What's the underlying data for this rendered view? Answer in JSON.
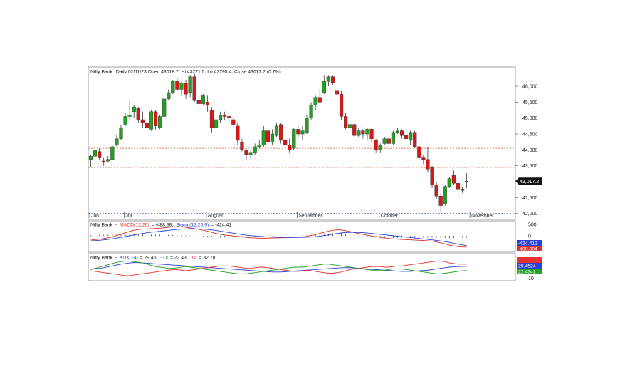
{
  "chart_data": [
    {
      "panel": "price",
      "type": "candlestick",
      "header": {
        "symbol": "Nifty Bank",
        "text": "Daily 02/11/23 Open 43018.7, Hi 43271.5, Lo 42795.4, Close 43017.2 (0.7%)"
      },
      "y_ticks": [
        "46,000",
        "45,500",
        "45,000",
        "44,500",
        "44,000",
        "43,500",
        "42,500",
        "42,000"
      ],
      "ylim": [
        41860,
        46560
      ],
      "last_value_label": "43,017.2",
      "last_value": 43017.2,
      "month_labels": [
        {
          "label": "Jun",
          "index": 0
        },
        {
          "label": "Jul",
          "index": 8
        },
        {
          "label": "August",
          "index": 27
        },
        {
          "label": "September",
          "index": 48
        },
        {
          "label": "October",
          "index": 67
        },
        {
          "label": "November",
          "index": 88
        }
      ],
      "reference_lines": [
        {
          "value": 44050,
          "style": "dotted",
          "color": "#e0532a"
        },
        {
          "value": 43450,
          "style": "dotted",
          "color": "#e0532a"
        },
        {
          "value": 42830,
          "style": "dotted",
          "color": "#3050c0"
        },
        {
          "value": 42000,
          "style": "dotted",
          "color": "#3050c0"
        }
      ],
      "candles": [
        [
          43700,
          43850,
          43450,
          43800
        ],
        [
          43800,
          44050,
          43750,
          43980
        ],
        [
          43950,
          44050,
          43700,
          43750
        ],
        [
          43650,
          43750,
          43500,
          43620
        ],
        [
          43650,
          43800,
          43600,
          43700
        ],
        [
          43700,
          44150,
          43680,
          44100
        ],
        [
          44150,
          44480,
          44100,
          44350
        ],
        [
          44350,
          44780,
          44300,
          44700
        ],
        [
          44800,
          45150,
          44750,
          45050
        ],
        [
          45050,
          45550,
          44950,
          45100
        ],
        [
          45200,
          45400,
          45000,
          45350
        ],
        [
          45300,
          45350,
          44850,
          44950
        ],
        [
          44950,
          45200,
          44700,
          44850
        ],
        [
          44850,
          45050,
          44600,
          44700
        ],
        [
          44650,
          45250,
          44600,
          45200
        ],
        [
          45200,
          45250,
          44650,
          44750
        ],
        [
          44700,
          45100,
          44650,
          45050
        ],
        [
          45050,
          45650,
          45000,
          45600
        ],
        [
          45600,
          45900,
          45550,
          45800
        ],
        [
          45800,
          46200,
          45750,
          46150
        ],
        [
          46150,
          46250,
          45850,
          45900
        ],
        [
          45900,
          46150,
          45700,
          46100
        ],
        [
          46100,
          46200,
          45600,
          45750
        ],
        [
          45800,
          46350,
          45650,
          46300
        ],
        [
          46300,
          46400,
          45500,
          45550
        ],
        [
          45550,
          45700,
          45300,
          45450
        ],
        [
          45450,
          45750,
          45400,
          45700
        ],
        [
          45500,
          45700,
          45200,
          45400
        ],
        [
          45250,
          45350,
          44550,
          44700
        ],
        [
          44700,
          45000,
          44600,
          44950
        ],
        [
          44950,
          45200,
          44850,
          45100
        ],
        [
          45100,
          45200,
          44950,
          45050
        ],
        [
          45050,
          45150,
          44800,
          45000
        ],
        [
          44950,
          45050,
          44700,
          44800
        ],
        [
          44750,
          44850,
          44150,
          44300
        ],
        [
          44250,
          44350,
          43950,
          44000
        ],
        [
          44000,
          44050,
          43700,
          43850
        ],
        [
          43850,
          44000,
          43700,
          43900
        ],
        [
          43900,
          44200,
          43850,
          44100
        ],
        [
          44100,
          44300,
          44050,
          44150
        ],
        [
          44150,
          44750,
          44100,
          44600
        ],
        [
          44600,
          44700,
          44100,
          44250
        ],
        [
          44250,
          44650,
          44150,
          44500
        ],
        [
          44450,
          44850,
          44400,
          44750
        ],
        [
          44800,
          44850,
          44200,
          44300
        ],
        [
          44300,
          44450,
          44050,
          44150
        ],
        [
          44150,
          44350,
          43900,
          44000
        ],
        [
          44050,
          44700,
          44000,
          44650
        ],
        [
          44650,
          44750,
          44400,
          44500
        ],
        [
          44500,
          44750,
          44300,
          44600
        ],
        [
          44550,
          45100,
          44500,
          45000
        ],
        [
          45000,
          45500,
          44950,
          45400
        ],
        [
          45400,
          45700,
          45250,
          45650
        ],
        [
          45650,
          45900,
          45450,
          45500
        ],
        [
          45800,
          46350,
          45750,
          46150
        ],
        [
          46150,
          46350,
          46000,
          46300
        ],
        [
          46300,
          46350,
          46050,
          46100
        ],
        [
          45850,
          45950,
          45650,
          45750
        ],
        [
          45750,
          45850,
          44950,
          45050
        ],
        [
          45050,
          45150,
          44650,
          44700
        ],
        [
          44700,
          44900,
          44550,
          44800
        ],
        [
          44800,
          44900,
          44400,
          44450
        ],
        [
          44450,
          44700,
          44400,
          44600
        ],
        [
          44600,
          44650,
          44350,
          44500
        ],
        [
          44500,
          44700,
          44300,
          44650
        ],
        [
          44650,
          44700,
          44250,
          44350
        ],
        [
          44300,
          44350,
          43900,
          44000
        ],
        [
          44000,
          44200,
          43900,
          44150
        ],
        [
          44200,
          44400,
          44150,
          44350
        ],
        [
          44350,
          44450,
          44100,
          44200
        ],
        [
          44200,
          44600,
          44150,
          44550
        ],
        [
          44550,
          44700,
          44500,
          44600
        ],
        [
          44600,
          44650,
          44350,
          44450
        ],
        [
          44450,
          44550,
          44250,
          44350
        ],
        [
          44300,
          44600,
          44150,
          44550
        ],
        [
          44550,
          44600,
          44050,
          44100
        ],
        [
          44100,
          44150,
          43700,
          43750
        ],
        [
          43750,
          43850,
          43550,
          43700
        ],
        [
          43700,
          44100,
          43300,
          43400
        ],
        [
          43450,
          43500,
          42800,
          42900
        ],
        [
          42900,
          43000,
          42450,
          42550
        ],
        [
          42550,
          42650,
          42050,
          42250
        ],
        [
          42300,
          42900,
          42250,
          42850
        ],
        [
          42850,
          43150,
          42800,
          43100
        ],
        [
          43200,
          43350,
          42900,
          42950
        ],
        [
          42950,
          43050,
          42650,
          42750
        ],
        [
          42750,
          42850,
          42650,
          42750
        ],
        [
          43018.7,
          43271.5,
          42795.4,
          43017.2
        ]
      ]
    },
    {
      "panel": "macd",
      "type": "line",
      "header": {
        "symbol": "Nifty Bank",
        "indicator": "MACD(12,26)",
        "indicator_value": "= -488.38,",
        "signal": "Signal(12,26,9)",
        "signal_value": "= -424.41"
      },
      "y_ticks": [
        "500",
        "0"
      ],
      "ylim": [
        -650,
        600
      ],
      "value_labels": [
        {
          "text": "-424.412",
          "color": "#2840d8"
        },
        {
          "text": "-488.384",
          "color": "#d83028"
        }
      ],
      "series": [
        {
          "name": "MACD(12,26)",
          "color": "#d83028",
          "values": [
            -180,
            -160,
            -140,
            -110,
            -80,
            -40,
            20,
            80,
            140,
            200,
            250,
            280,
            300,
            310,
            320,
            330,
            340,
            360,
            380,
            400,
            410,
            400,
            380,
            350,
            320,
            290,
            250,
            210,
            160,
            110,
            70,
            40,
            20,
            0,
            -20,
            -40,
            -60,
            -80,
            -90,
            -100,
            -100,
            -95,
            -90,
            -85,
            -80,
            -75,
            -70,
            -60,
            -50,
            -40,
            -20,
            20,
            60,
            110,
            160,
            210,
            250,
            270,
            260,
            230,
            190,
            150,
            110,
            70,
            30,
            0,
            -30,
            -60,
            -90,
            -110,
            -130,
            -140,
            -150,
            -160,
            -170,
            -180,
            -190,
            -200,
            -210,
            -230,
            -260,
            -300,
            -350,
            -400,
            -440,
            -470,
            -485,
            -488.38
          ]
        },
        {
          "name": "Signal(12,26,9)",
          "color": "#2840d8",
          "values": [
            -220,
            -205,
            -190,
            -170,
            -150,
            -125,
            -95,
            -60,
            -25,
            10,
            45,
            80,
            110,
            140,
            165,
            185,
            205,
            225,
            245,
            265,
            285,
            300,
            310,
            315,
            315,
            310,
            300,
            285,
            265,
            240,
            210,
            180,
            150,
            120,
            90,
            60,
            35,
            15,
            0,
            -15,
            -30,
            -40,
            -50,
            -55,
            -60,
            -63,
            -65,
            -65,
            -64,
            -60,
            -55,
            -45,
            -30,
            -10,
            15,
            45,
            80,
            110,
            135,
            150,
            158,
            160,
            155,
            145,
            130,
            110,
            90,
            70,
            50,
            30,
            10,
            -10,
            -30,
            -50,
            -70,
            -90,
            -110,
            -130,
            -150,
            -170,
            -195,
            -220,
            -250,
            -280,
            -320,
            -360,
            -395,
            -424.41
          ]
        }
      ],
      "histogram": [
        35,
        40,
        45,
        50,
        55,
        60,
        70,
        80,
        90,
        95,
        95,
        90,
        80,
        70,
        60,
        55,
        50,
        48,
        45,
        45,
        40,
        35,
        25,
        15,
        5,
        -10,
        -25,
        -40,
        -55,
        -65,
        -70,
        -70,
        -65,
        -60,
        -55,
        -50,
        -45,
        -40,
        -35,
        -30,
        -25,
        -20,
        -15,
        -10,
        -5,
        0,
        5,
        10,
        15,
        20,
        30,
        45,
        60,
        80,
        95,
        110,
        120,
        125,
        115,
        95,
        70,
        45,
        20,
        -5,
        -25,
        -40,
        -55,
        -70,
        -80,
        -85,
        -85,
        -80,
        -75,
        -70,
        -70,
        -70,
        -70,
        -70,
        -70,
        -70,
        -75,
        -85,
        -95,
        -100,
        -90,
        -80,
        -70,
        -64
      ]
    },
    {
      "panel": "adx",
      "type": "line",
      "header": {
        "symbol": "Nifty Bank",
        "adx": "ADX(14)",
        "adx_value": "= 29.45,",
        "pdi": "+DI",
        "pdi_value": "= 22.43,",
        "mdi": "-DI",
        "mdi_value": "= 32.78"
      },
      "y_ticks": [
        "10"
      ],
      "ylim": [
        8,
        48
      ],
      "value_labels": [
        {
          "text": "29.4524",
          "color": "#2840d8"
        },
        {
          "text": "22.4341",
          "color": "#22a022"
        }
      ],
      "series": [
        {
          "name": "ADX(14)",
          "color": "#2840d8",
          "values": [
            25,
            25.5,
            26,
            27,
            28.5,
            30,
            31.5,
            33,
            34,
            35,
            35.5,
            35.5,
            35,
            34.5,
            34,
            33.5,
            33,
            32.5,
            32,
            31.5,
            31,
            30.5,
            30,
            29.5,
            29,
            28.5,
            28,
            27.5,
            27,
            26.5,
            26,
            25.5,
            25,
            24.5,
            24,
            23.5,
            23,
            22.5,
            22,
            21.5,
            21,
            20.5,
            20,
            20,
            20,
            20.5,
            21,
            21.5,
            22,
            22.5,
            23,
            23.5,
            24,
            24.5,
            25,
            25.5,
            26,
            26.5,
            27,
            27,
            27,
            26.5,
            26,
            25.5,
            25,
            24.5,
            24,
            23.5,
            23,
            22.5,
            22,
            21.5,
            21,
            21,
            21,
            21.5,
            22,
            22.5,
            23,
            24,
            25,
            26,
            27,
            28,
            28.5,
            29,
            29.3,
            29.45
          ]
        },
        {
          "name": "+DI",
          "color": "#22a022",
          "values": [
            24,
            26,
            28,
            30,
            32,
            34,
            36,
            37,
            38,
            38,
            37,
            36,
            35,
            33,
            31,
            29,
            28,
            27,
            26,
            26,
            27,
            28,
            29,
            28,
            27,
            26,
            25,
            24,
            23,
            22,
            21,
            20,
            19,
            18,
            17,
            17,
            17,
            18,
            19,
            20,
            21,
            22,
            23,
            24,
            25,
            26,
            27,
            28,
            28,
            28,
            29,
            30,
            31,
            32,
            33,
            33,
            32,
            31,
            30,
            29,
            28,
            27,
            26,
            25,
            24,
            23,
            23,
            23,
            23,
            24,
            25,
            25,
            25,
            24,
            23,
            22,
            21,
            20,
            19,
            18,
            17,
            17,
            18,
            19,
            20,
            21,
            22,
            22.43
          ]
        },
        {
          "name": "-DI",
          "color": "#e83030",
          "values": [
            22,
            21,
            20,
            19,
            18,
            17,
            16,
            15,
            14,
            14,
            15,
            16,
            17,
            18,
            19,
            20,
            21,
            22,
            23,
            24,
            24,
            23,
            22,
            23,
            24,
            25,
            26,
            27,
            28,
            29,
            30,
            30,
            30,
            29,
            28,
            27,
            26,
            26,
            27,
            28,
            28,
            27,
            26,
            25,
            24,
            23,
            22,
            21,
            21,
            22,
            23,
            22,
            21,
            20,
            19,
            18,
            18,
            19,
            20,
            22,
            24,
            25,
            26,
            27,
            28,
            29,
            29,
            29,
            28,
            28,
            29,
            30,
            30,
            31,
            32,
            33,
            34,
            35,
            36,
            37,
            38,
            38,
            37,
            35,
            34,
            33,
            33,
            32.78
          ]
        }
      ]
    }
  ],
  "colors": {
    "up_candle": "#22a022",
    "down_candle": "#d81818",
    "grid": "#999999",
    "last_price_tag_bg": "#111111",
    "last_price_tag_text": "#ffffff"
  }
}
